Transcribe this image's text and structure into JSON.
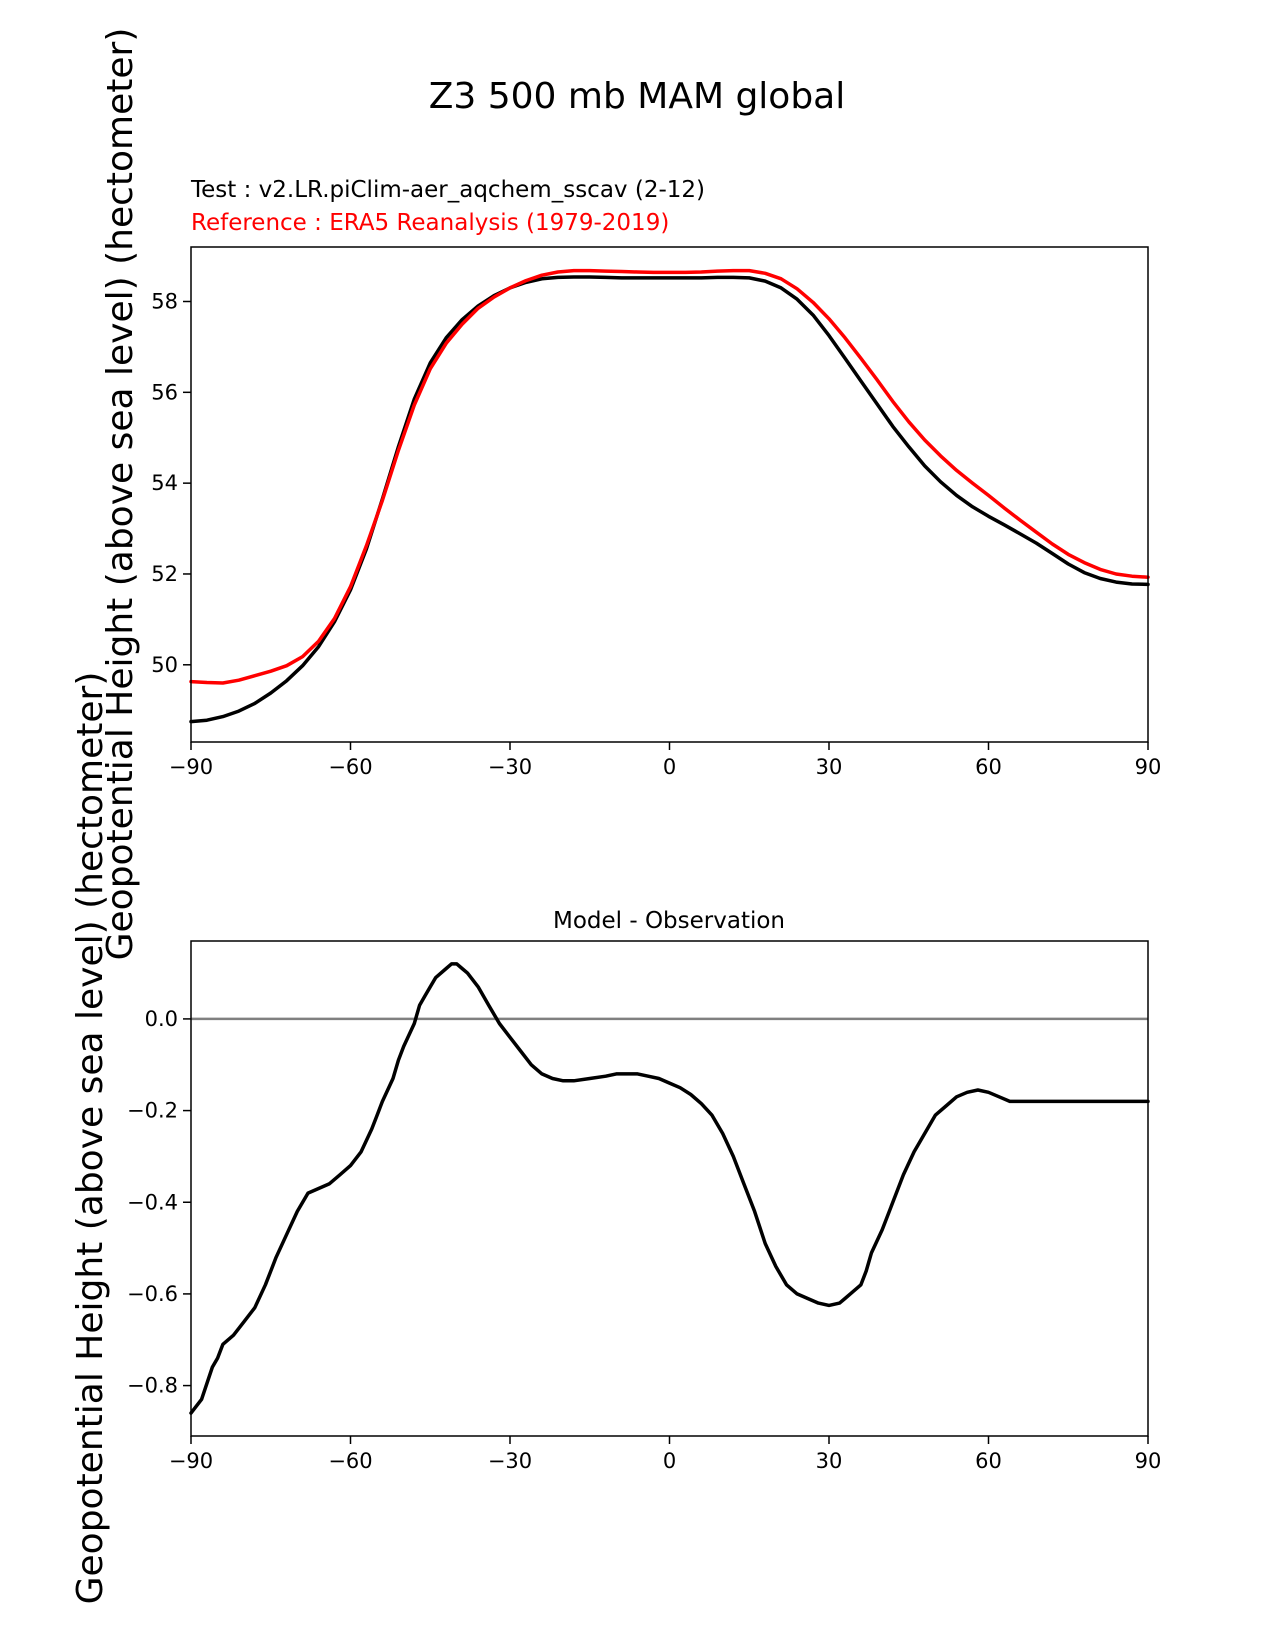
{
  "figure": {
    "title": "Z3 500 mb MAM global"
  },
  "chart_data": [
    {
      "type": "line",
      "title_lines": [
        {
          "text": "Test : v2.LR.piClim-aer_aqchem_sscav (2-12)",
          "color": "#000000"
        },
        {
          "text": "Reference : ERA5 Reanalysis (1979-2019)",
          "color": "#ff0000"
        }
      ],
      "ylabel": "Geopotential Height (above sea level) (hectometer)",
      "xlim": [
        -90,
        90
      ],
      "ylim": [
        48.3,
        59.2
      ],
      "xticks": [
        -90,
        -60,
        -30,
        0,
        30,
        60,
        90
      ],
      "xtick_labels": [
        "−90",
        "−60",
        "−30",
        "0",
        "30",
        "60",
        "90"
      ],
      "yticks": [
        50,
        52,
        54,
        56,
        58
      ],
      "ytick_labels": [
        "50",
        "52",
        "54",
        "56",
        "58"
      ],
      "series": [
        {
          "name": "Test",
          "color": "#000000",
          "x": [
            -90,
            -87,
            -84,
            -81,
            -78,
            -75,
            -72,
            -69,
            -66,
            -63,
            -60,
            -57,
            -54,
            -51,
            -48,
            -45,
            -42,
            -39,
            -36,
            -33,
            -30,
            -27,
            -24,
            -21,
            -18,
            -15,
            -12,
            -9,
            -6,
            -3,
            0,
            3,
            6,
            9,
            12,
            15,
            18,
            21,
            24,
            27,
            30,
            33,
            36,
            39,
            42,
            45,
            48,
            51,
            54,
            57,
            60,
            63,
            66,
            69,
            72,
            75,
            78,
            81,
            84,
            87,
            90
          ],
          "y": [
            48.75,
            48.78,
            48.86,
            48.98,
            49.15,
            49.38,
            49.65,
            49.98,
            50.4,
            50.95,
            51.65,
            52.55,
            53.65,
            54.8,
            55.85,
            56.65,
            57.2,
            57.6,
            57.9,
            58.13,
            58.3,
            58.42,
            58.5,
            58.53,
            58.54,
            58.54,
            58.53,
            58.52,
            58.52,
            58.52,
            58.52,
            58.52,
            58.52,
            58.53,
            58.53,
            58.52,
            58.45,
            58.3,
            58.05,
            57.7,
            57.25,
            56.75,
            56.25,
            55.75,
            55.25,
            54.8,
            54.38,
            54.03,
            53.73,
            53.48,
            53.27,
            53.08,
            52.88,
            52.68,
            52.45,
            52.22,
            52.03,
            51.9,
            51.82,
            51.78,
            51.77
          ]
        },
        {
          "name": "Reference",
          "color": "#ff0000",
          "x": [
            -90,
            -87,
            -84,
            -81,
            -78,
            -75,
            -72,
            -69,
            -66,
            -63,
            -60,
            -57,
            -54,
            -51,
            -48,
            -45,
            -42,
            -39,
            -36,
            -33,
            -30,
            -27,
            -24,
            -21,
            -18,
            -15,
            -12,
            -9,
            -6,
            -3,
            0,
            3,
            6,
            9,
            12,
            15,
            18,
            21,
            24,
            27,
            30,
            33,
            36,
            39,
            42,
            45,
            48,
            51,
            54,
            57,
            60,
            63,
            66,
            69,
            72,
            75,
            78,
            81,
            84,
            87,
            90
          ],
          "y": [
            49.63,
            49.61,
            49.6,
            49.66,
            49.76,
            49.86,
            49.98,
            50.18,
            50.52,
            51.02,
            51.72,
            52.62,
            53.62,
            54.72,
            55.72,
            56.52,
            57.08,
            57.5,
            57.85,
            58.1,
            58.3,
            58.46,
            58.58,
            58.65,
            58.68,
            58.68,
            58.67,
            58.66,
            58.65,
            58.64,
            58.64,
            58.64,
            58.65,
            58.67,
            58.68,
            58.68,
            58.62,
            58.5,
            58.28,
            57.98,
            57.62,
            57.2,
            56.75,
            56.28,
            55.8,
            55.35,
            54.95,
            54.6,
            54.28,
            54.0,
            53.73,
            53.45,
            53.18,
            52.92,
            52.66,
            52.43,
            52.25,
            52.1,
            52.0,
            51.95,
            51.93
          ]
        }
      ]
    },
    {
      "type": "line",
      "title": "Model - Observation",
      "ylabel": "Geopotential Height (above sea level) (hectometer)",
      "xlim": [
        -90,
        90
      ],
      "ylim": [
        -0.91,
        0.17
      ],
      "xticks": [
        -90,
        -60,
        -30,
        0,
        30,
        60,
        90
      ],
      "xtick_labels": [
        "−90",
        "−60",
        "−30",
        "0",
        "30",
        "60",
        "90"
      ],
      "yticks": [
        0.0,
        -0.2,
        -0.4,
        -0.6,
        -0.8
      ],
      "ytick_labels": [
        "0.0",
        "−0.2",
        "−0.4",
        "−0.6",
        "−0.8"
      ],
      "zero_line": {
        "y": 0.0,
        "color": "#808080"
      },
      "series": [
        {
          "name": "Model - Observation",
          "color": "#000000",
          "x": [
            -90,
            -88,
            -86,
            -85,
            -84,
            -82,
            -80,
            -78,
            -76,
            -75,
            -74,
            -72,
            -70,
            -68,
            -66,
            -64,
            -62,
            -60,
            -58,
            -56,
            -55,
            -54,
            -52,
            -51,
            -50,
            -48,
            -47,
            -46,
            -45,
            -44,
            -42,
            -41,
            -40,
            -39,
            -38,
            -36,
            -34,
            -32,
            -30,
            -28,
            -26,
            -24,
            -22,
            -20,
            -18,
            -15,
            -12,
            -10,
            -8,
            -6,
            -4,
            -2,
            0,
            2,
            4,
            6,
            8,
            10,
            12,
            14,
            16,
            18,
            20,
            22,
            24,
            26,
            28,
            30,
            32,
            33,
            34,
            36,
            37,
            38,
            40,
            42,
            44,
            46,
            48,
            50,
            52,
            54,
            56,
            58,
            60,
            62,
            64,
            66,
            68,
            70,
            72,
            74,
            76,
            78,
            80,
            82,
            84,
            86,
            88,
            90
          ],
          "y": [
            -0.86,
            -0.83,
            -0.76,
            -0.74,
            -0.71,
            -0.69,
            -0.66,
            -0.63,
            -0.58,
            -0.55,
            -0.52,
            -0.47,
            -0.42,
            -0.38,
            -0.37,
            -0.36,
            -0.34,
            -0.32,
            -0.29,
            -0.24,
            -0.21,
            -0.18,
            -0.13,
            -0.09,
            -0.06,
            -0.01,
            0.03,
            0.05,
            0.07,
            0.09,
            0.11,
            0.12,
            0.12,
            0.11,
            0.1,
            0.07,
            0.03,
            -0.01,
            -0.04,
            -0.07,
            -0.1,
            -0.12,
            -0.13,
            -0.135,
            -0.135,
            -0.13,
            -0.125,
            -0.12,
            -0.12,
            -0.12,
            -0.125,
            -0.13,
            -0.14,
            -0.15,
            -0.165,
            -0.185,
            -0.21,
            -0.25,
            -0.3,
            -0.36,
            -0.42,
            -0.49,
            -0.54,
            -0.58,
            -0.6,
            -0.61,
            -0.62,
            -0.625,
            -0.62,
            -0.61,
            -0.6,
            -0.58,
            -0.55,
            -0.51,
            -0.46,
            -0.4,
            -0.34,
            -0.29,
            -0.25,
            -0.21,
            -0.19,
            -0.17,
            -0.16,
            -0.155,
            -0.16,
            -0.17,
            -0.18,
            -0.18,
            -0.18,
            -0.18,
            -0.18,
            -0.18,
            -0.18,
            -0.18,
            -0.18,
            -0.18,
            -0.18,
            -0.18,
            -0.18,
            -0.18
          ]
        }
      ]
    }
  ]
}
